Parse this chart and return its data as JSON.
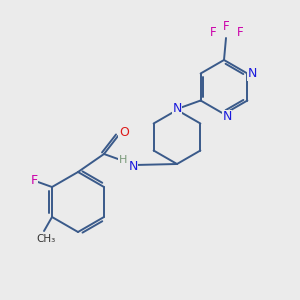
{
  "bg_color": "#ebebeb",
  "bond_color": "#3a5a8a",
  "bond_width": 1.4,
  "atom_colors": {
    "N": "#1a1add",
    "O": "#dd1a1a",
    "F": "#cc00aa",
    "H": "#7a9a7a"
  },
  "figsize": [
    3.0,
    3.0
  ],
  "dpi": 100
}
